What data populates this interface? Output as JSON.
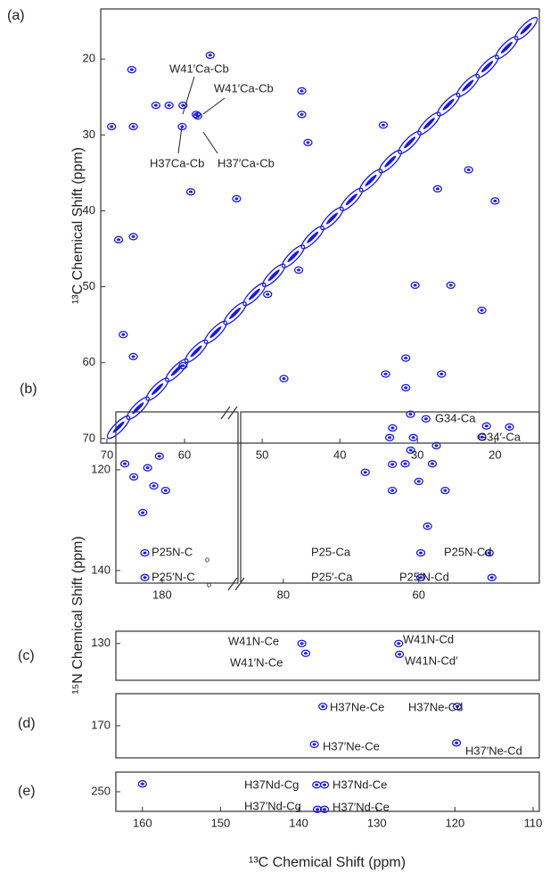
{
  "chart_data": [
    {
      "type": "scatter",
      "panel_label": "(a)",
      "ylabel": "¹³C Chemical Shift  (ppm)",
      "xlim": [
        70.8,
        14.3
      ],
      "ylim": [
        13.4,
        70.6
      ],
      "xticks": [
        70,
        60,
        50,
        40,
        30,
        20
      ],
      "yticks": [
        20,
        30,
        40,
        50,
        60,
        70
      ],
      "annotations": [
        "W41′Ca-Cb",
        "W41′Ca-Cb",
        "H37Ca-Cb",
        "H37′Ca-Cb"
      ],
      "series": [
        {
          "color": "#1a1adc",
          "elongated": true,
          "x": [
            68.5,
            66,
            63.5,
            61,
            58.5,
            56,
            53.5,
            51,
            48.5,
            46,
            43.5,
            41,
            38.5,
            36,
            33.5,
            31,
            28.5,
            26,
            23.5,
            21,
            18.5,
            16
          ],
          "values": [
            68.5,
            66,
            63.5,
            61,
            58.5,
            56,
            53.5,
            51,
            48.5,
            46,
            43.5,
            41,
            38.5,
            36,
            33.5,
            31,
            28.5,
            26,
            23.5,
            21,
            18.5,
            16
          ]
        },
        {
          "color": "#1a1adc",
          "elongated": false,
          "x": [
            66.8,
            69.4,
            66.6,
            63.7,
            62.0,
            60.2,
            58.5,
            56.7,
            60.3,
            58.3,
            59.2,
            66.6,
            53.3,
            44.9,
            44.9,
            44.1,
            34.4,
            23.4,
            27.4,
            20.0,
            26.9,
            34.1,
            31.5,
            31.5,
            30.3,
            25.7,
            21.7,
            68.5,
            67.9,
            66.6,
            60.2,
            47.2,
            45.3,
            49.3,
            33.2,
            21.7,
            28.9,
            30.9
          ],
          "values": [
            21.4,
            28.9,
            28.9,
            26.1,
            26.1,
            26.1,
            27.3,
            19.5,
            28.9,
            27.5,
            37.5,
            43.4,
            38.4,
            27.3,
            24.2,
            31.0,
            28.7,
            34.6,
            37.1,
            38.7,
            61.5,
            61.5,
            59.4,
            63.3,
            49.8,
            49.8,
            53.1,
            43.8,
            56.3,
            59.2,
            60.4,
            62.1,
            47.8,
            51.0,
            68.6,
            69.8,
            67.4,
            66.8
          ]
        }
      ]
    },
    {
      "type": "scatter",
      "panel_label": "(b)",
      "ylabel": "¹⁵N Chemical Shift  (ppm)",
      "xlim": [
        186.7,
        169
      ],
      "ylim": [
        108.5,
        142.5
      ],
      "xticks": [
        180
      ],
      "yticks": [
        120,
        140
      ],
      "annotations": [
        "P25N-C",
        "o",
        "P25′N-C",
        "o"
      ],
      "series": [
        {
          "color": "#1a1adc",
          "elongated": false,
          "x": [
            185.4,
            184.1,
            182.1,
            180.4,
            181.2,
            179.5,
            182.8,
            182.5,
            182.5
          ],
          "values": [
            118.8,
            121.4,
            119.6,
            117.3,
            123.2,
            124.1,
            128.5,
            136.5,
            141.4
          ]
        }
      ]
    },
    {
      "type": "scatter",
      "xlim": [
        86.3,
        42.2
      ],
      "ylim": [
        108.5,
        142.5
      ],
      "xticks": [
        80,
        60
      ],
      "annotations": [
        "G34-Ca",
        "G34′-Ca",
        "P25-Ca",
        "P25′-Ca",
        "P25N-Cd",
        "P25′N-Cd"
      ],
      "series": [
        {
          "color": "#1a1adc",
          "elongated": false,
          "x": [
            50,
            46.6,
            59.7,
            59.7,
            49.6,
            49.2,
            63.9,
            64.3,
            60.8,
            61.2,
            57.4,
            58.0,
            60.0,
            63.9,
            56.1,
            67.9,
            58.7,
            62.0
          ],
          "values": [
            111.3,
            111.5,
            136.5,
            141.4,
            136.5,
            141.4,
            118.9,
            113.6,
            113.6,
            116.1,
            115.2,
            118.8,
            122.3,
            124.1,
            124.1,
            120.5,
            131.2,
            118.8
          ]
        }
      ]
    },
    {
      "type": "scatter",
      "panel_label": "(c)",
      "xlim": [
        163.4,
        109.2
      ],
      "ylim": [
        127.5,
        137.5
      ],
      "yticks": [
        130
      ],
      "annotations": [
        "W41N-Ce",
        "W41′N-Ce",
        "W41N-Cd",
        "W41N-Cd′"
      ],
      "series": [
        {
          "color": "#1a1adc",
          "elongated": false,
          "x": [
            139.6,
            139.1,
            127.2,
            127.1
          ],
          "values": [
            130,
            132,
            130,
            132.2
          ]
        }
      ]
    },
    {
      "type": "scatter",
      "panel_label": "(d)",
      "xlim": [
        163.4,
        109.2
      ],
      "ylim": [
        155,
        185
      ],
      "yticks": [
        170
      ],
      "annotations": [
        "H37Ne-Ce",
        "H37′Ne-Ce",
        "H37Ne-Cd",
        "H37′Ne-Cd"
      ],
      "series": [
        {
          "color": "#1a1adc",
          "elongated": false,
          "x": [
            136.9,
            138,
            119.7,
            119.8
          ],
          "values": [
            161,
            178.7,
            161,
            178
          ]
        }
      ]
    },
    {
      "type": "scatter",
      "panel_label": "(e)",
      "xlabel": "¹³C Chemical Shift  (ppm)",
      "xlim": [
        163.4,
        109.2
      ],
      "ylim": [
        240,
        260
      ],
      "xticks": [
        160,
        150,
        140,
        130,
        120,
        110
      ],
      "yticks": [
        250
      ],
      "annotations": [
        "H37Nd-Cg",
        "H37Nd-Ce",
        "H37′Nd-Cg",
        "H37′Nd-Ce"
      ],
      "series": [
        {
          "color": "#1a1adc",
          "elongated": false,
          "x": [
            160,
            137.7,
            136.7,
            137.6,
            136.7
          ],
          "values": [
            246,
            246.5,
            246.5,
            259,
            259
          ]
        }
      ]
    }
  ]
}
